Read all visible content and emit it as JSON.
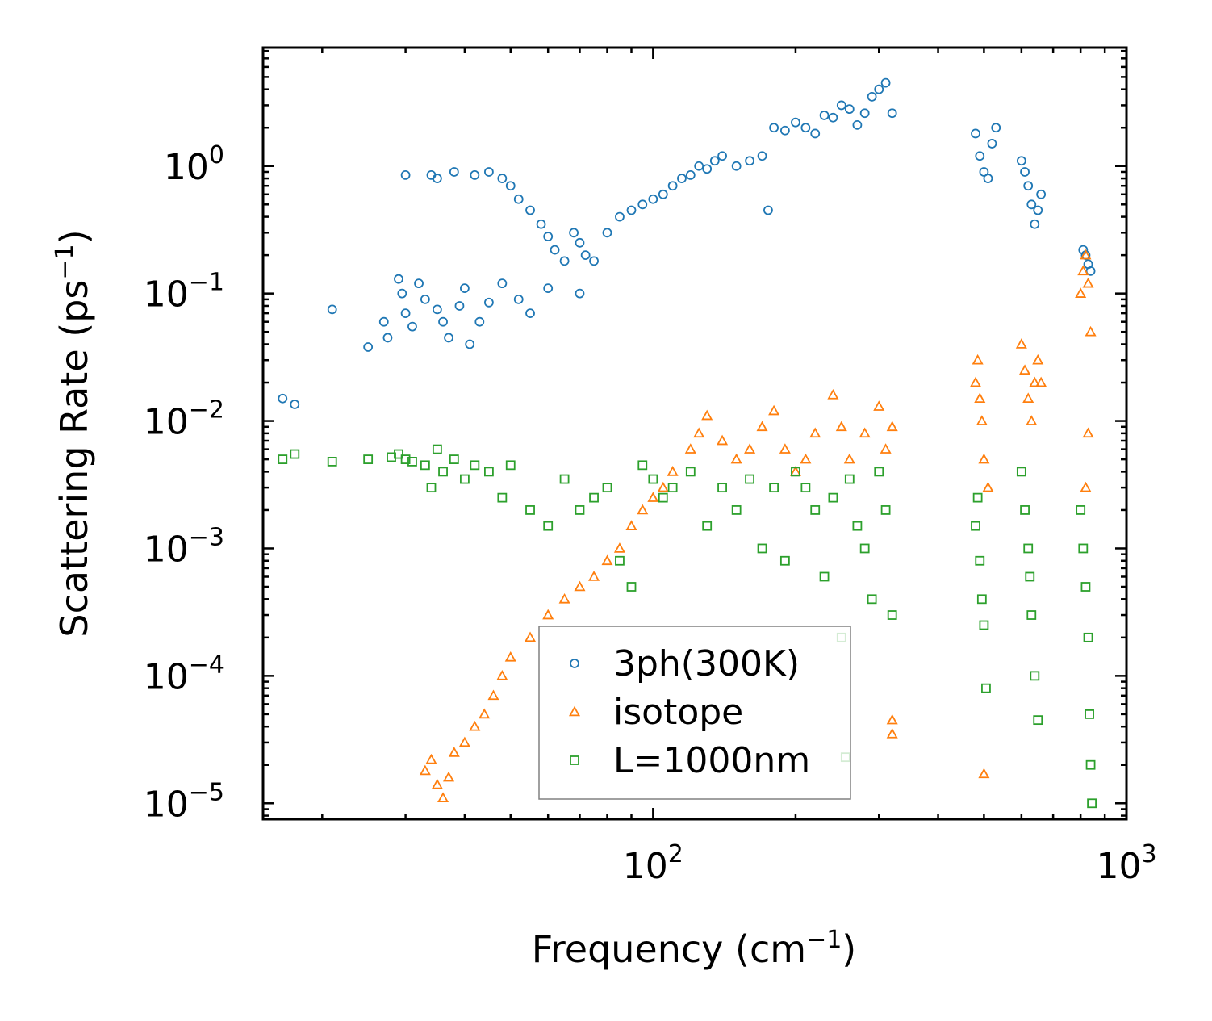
{
  "chart_data": {
    "type": "scatter",
    "xscale": "log",
    "yscale": "log",
    "xlim": [
      15,
      1000
    ],
    "ylim": [
      7.5e-06,
      8.5
    ],
    "xlabel_text": "Frequency (cm",
    "xlabel_unit_exp": "−1",
    "xlabel_close": ")",
    "ylabel_text": "Scattering Rate (ps",
    "ylabel_unit_exp": "−1",
    "ylabel_close": ")",
    "x_ticks": [
      {
        "value": 100,
        "base": "10",
        "exp": "2"
      },
      {
        "value": 1000,
        "base": "10",
        "exp": "3"
      }
    ],
    "y_ticks": [
      {
        "value": 1,
        "base": "10",
        "exp": "0"
      },
      {
        "value": 0.1,
        "base": "10",
        "exp": "−1"
      },
      {
        "value": 0.01,
        "base": "10",
        "exp": "−2"
      },
      {
        "value": 0.001,
        "base": "10",
        "exp": "−3"
      },
      {
        "value": 0.0001,
        "base": "10",
        "exp": "−4"
      },
      {
        "value": 1e-05,
        "base": "10",
        "exp": "−5"
      }
    ],
    "legend_position": "lower-center",
    "series": [
      {
        "name": "3ph(300K)",
        "marker": "circle",
        "color": "#1f77b4",
        "points": [
          [
            16.5,
            0.015
          ],
          [
            17.5,
            0.0135
          ],
          [
            21,
            0.075
          ],
          [
            25,
            0.038
          ],
          [
            27,
            0.06
          ],
          [
            27.5,
            0.045
          ],
          [
            29,
            0.13
          ],
          [
            29.5,
            0.1
          ],
          [
            30,
            0.07
          ],
          [
            31,
            0.055
          ],
          [
            32,
            0.12
          ],
          [
            33,
            0.09
          ],
          [
            35,
            0.075
          ],
          [
            36,
            0.06
          ],
          [
            37,
            0.045
          ],
          [
            39,
            0.08
          ],
          [
            40,
            0.11
          ],
          [
            41,
            0.04
          ],
          [
            43,
            0.06
          ],
          [
            45,
            0.085
          ],
          [
            48,
            0.12
          ],
          [
            52,
            0.09
          ],
          [
            55,
            0.07
          ],
          [
            60,
            0.11
          ],
          [
            70,
            0.1
          ],
          [
            30,
            0.85
          ],
          [
            34,
            0.85
          ],
          [
            35,
            0.8
          ],
          [
            38,
            0.9
          ],
          [
            42,
            0.85
          ],
          [
            45,
            0.9
          ],
          [
            48,
            0.8
          ],
          [
            50,
            0.7
          ],
          [
            52,
            0.55
          ],
          [
            55,
            0.45
          ],
          [
            58,
            0.35
          ],
          [
            60,
            0.28
          ],
          [
            62,
            0.22
          ],
          [
            65,
            0.18
          ],
          [
            68,
            0.3
          ],
          [
            70,
            0.25
          ],
          [
            72,
            0.2
          ],
          [
            75,
            0.18
          ],
          [
            80,
            0.3
          ],
          [
            85,
            0.4
          ],
          [
            90,
            0.45
          ],
          [
            95,
            0.5
          ],
          [
            100,
            0.55
          ],
          [
            105,
            0.6
          ],
          [
            110,
            0.7
          ],
          [
            115,
            0.8
          ],
          [
            120,
            0.85
          ],
          [
            125,
            1.0
          ],
          [
            130,
            0.95
          ],
          [
            135,
            1.1
          ],
          [
            140,
            1.2
          ],
          [
            150,
            1.0
          ],
          [
            160,
            1.1
          ],
          [
            170,
            1.2
          ],
          [
            175,
            0.45
          ],
          [
            180,
            2.0
          ],
          [
            190,
            1.9
          ],
          [
            200,
            2.2
          ],
          [
            210,
            2.0
          ],
          [
            220,
            1.8
          ],
          [
            230,
            2.5
          ],
          [
            240,
            2.4
          ],
          [
            250,
            3.0
          ],
          [
            260,
            2.8
          ],
          [
            270,
            2.1
          ],
          [
            280,
            2.6
          ],
          [
            290,
            3.5
          ],
          [
            300,
            4.0
          ],
          [
            310,
            4.5
          ],
          [
            320,
            2.6
          ],
          [
            480,
            1.8
          ],
          [
            490,
            1.2
          ],
          [
            500,
            0.9
          ],
          [
            510,
            0.8
          ],
          [
            520,
            1.5
          ],
          [
            530,
            2.0
          ],
          [
            600,
            1.1
          ],
          [
            610,
            0.9
          ],
          [
            620,
            0.7
          ],
          [
            630,
            0.5
          ],
          [
            640,
            0.35
          ],
          [
            650,
            0.45
          ],
          [
            660,
            0.6
          ],
          [
            810,
            0.22
          ],
          [
            820,
            0.2
          ],
          [
            830,
            0.17
          ],
          [
            840,
            0.15
          ]
        ]
      },
      {
        "name": "isotope",
        "marker": "triangle",
        "color": "#ff7f0e",
        "points": [
          [
            33,
            1.8e-05
          ],
          [
            34,
            2.2e-05
          ],
          [
            35,
            1.4e-05
          ],
          [
            36,
            1.1e-05
          ],
          [
            37,
            1.6e-05
          ],
          [
            38,
            2.5e-05
          ],
          [
            40,
            3e-05
          ],
          [
            42,
            4e-05
          ],
          [
            44,
            5e-05
          ],
          [
            46,
            7e-05
          ],
          [
            48,
            0.0001
          ],
          [
            50,
            0.00014
          ],
          [
            55,
            0.0002
          ],
          [
            60,
            0.0003
          ],
          [
            65,
            0.0004
          ],
          [
            70,
            0.0005
          ],
          [
            75,
            0.0006
          ],
          [
            80,
            0.0008
          ],
          [
            85,
            0.001
          ],
          [
            90,
            0.0015
          ],
          [
            95,
            0.002
          ],
          [
            100,
            0.0025
          ],
          [
            105,
            0.003
          ],
          [
            110,
            0.004
          ],
          [
            120,
            0.006
          ],
          [
            125,
            0.008
          ],
          [
            130,
            0.011
          ],
          [
            140,
            0.007
          ],
          [
            150,
            0.005
          ],
          [
            160,
            0.006
          ],
          [
            170,
            0.009
          ],
          [
            180,
            0.012
          ],
          [
            190,
            0.006
          ],
          [
            200,
            0.004
          ],
          [
            210,
            0.005
          ],
          [
            220,
            0.008
          ],
          [
            240,
            0.016
          ],
          [
            250,
            0.009
          ],
          [
            260,
            0.005
          ],
          [
            280,
            0.008
          ],
          [
            300,
            0.013
          ],
          [
            310,
            0.006
          ],
          [
            320,
            0.009
          ],
          [
            320,
            4.5e-05
          ],
          [
            320,
            3.5e-05
          ],
          [
            480,
            0.02
          ],
          [
            485,
            0.03
          ],
          [
            490,
            0.015
          ],
          [
            495,
            0.01
          ],
          [
            500,
            0.005
          ],
          [
            510,
            0.003
          ],
          [
            500,
            1.7e-05
          ],
          [
            600,
            0.04
          ],
          [
            610,
            0.025
          ],
          [
            620,
            0.015
          ],
          [
            630,
            0.01
          ],
          [
            640,
            0.02
          ],
          [
            650,
            0.03
          ],
          [
            660,
            0.02
          ],
          [
            800,
            0.1
          ],
          [
            810,
            0.15
          ],
          [
            820,
            0.2
          ],
          [
            830,
            0.12
          ],
          [
            840,
            0.05
          ],
          [
            830,
            0.008
          ],
          [
            820,
            0.003
          ]
        ]
      },
      {
        "name": "L=1000nm",
        "marker": "square",
        "color": "#2ca02c",
        "points": [
          [
            16.5,
            0.005
          ],
          [
            17.5,
            0.0055
          ],
          [
            21,
            0.0048
          ],
          [
            25,
            0.005
          ],
          [
            28,
            0.0052
          ],
          [
            29,
            0.0055
          ],
          [
            30,
            0.005
          ],
          [
            31,
            0.0048
          ],
          [
            33,
            0.0045
          ],
          [
            34,
            0.003
          ],
          [
            35,
            0.006
          ],
          [
            36,
            0.004
          ],
          [
            38,
            0.005
          ],
          [
            40,
            0.0035
          ],
          [
            42,
            0.0045
          ],
          [
            45,
            0.004
          ],
          [
            48,
            0.0025
          ],
          [
            50,
            0.0045
          ],
          [
            55,
            0.002
          ],
          [
            60,
            0.0015
          ],
          [
            65,
            0.0035
          ],
          [
            70,
            0.002
          ],
          [
            75,
            0.0025
          ],
          [
            80,
            0.003
          ],
          [
            85,
            0.0008
          ],
          [
            90,
            0.0005
          ],
          [
            95,
            0.0045
          ],
          [
            100,
            0.0035
          ],
          [
            105,
            0.0025
          ],
          [
            110,
            0.003
          ],
          [
            120,
            0.004
          ],
          [
            130,
            0.0015
          ],
          [
            140,
            0.003
          ],
          [
            150,
            0.002
          ],
          [
            160,
            0.0035
          ],
          [
            170,
            0.001
          ],
          [
            180,
            0.003
          ],
          [
            190,
            0.0008
          ],
          [
            200,
            0.004
          ],
          [
            210,
            0.003
          ],
          [
            220,
            0.002
          ],
          [
            230,
            0.0006
          ],
          [
            240,
            0.0025
          ],
          [
            250,
            0.0002
          ],
          [
            255,
            2.3e-05
          ],
          [
            260,
            0.0035
          ],
          [
            270,
            0.0015
          ],
          [
            280,
            0.001
          ],
          [
            290,
            0.0004
          ],
          [
            300,
            0.004
          ],
          [
            310,
            0.002
          ],
          [
            320,
            0.0003
          ],
          [
            480,
            0.0015
          ],
          [
            485,
            0.0025
          ],
          [
            490,
            0.0008
          ],
          [
            495,
            0.0004
          ],
          [
            500,
            0.00025
          ],
          [
            505,
            8e-05
          ],
          [
            600,
            0.004
          ],
          [
            610,
            0.002
          ],
          [
            620,
            0.001
          ],
          [
            625,
            0.0006
          ],
          [
            630,
            0.0003
          ],
          [
            640,
            0.0001
          ],
          [
            650,
            4.5e-05
          ],
          [
            800,
            0.002
          ],
          [
            810,
            0.001
          ],
          [
            820,
            0.0005
          ],
          [
            830,
            0.0002
          ],
          [
            835,
            5e-05
          ],
          [
            840,
            2e-05
          ],
          [
            845,
            1e-05
          ]
        ]
      }
    ]
  }
}
